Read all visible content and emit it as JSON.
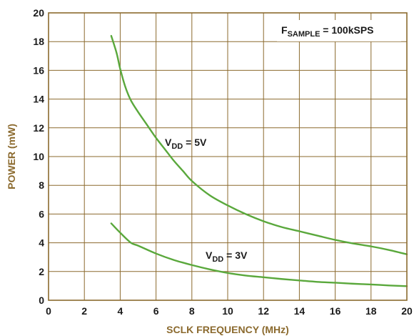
{
  "chart_data": {
    "type": "line",
    "xlabel": "SCLK FREQUENCY (MHz)",
    "ylabel": "POWER (mW)",
    "xlim": [
      0,
      20
    ],
    "ylim": [
      0,
      20
    ],
    "x_ticks": [
      0,
      2,
      4,
      6,
      8,
      10,
      12,
      14,
      16,
      18,
      20
    ],
    "y_ticks": [
      0,
      2,
      4,
      6,
      8,
      10,
      12,
      14,
      16,
      18,
      20
    ],
    "grid": true,
    "colors": {
      "grid": "#8b6a2e",
      "frame": "#8b6a2e",
      "series": "#5aa83c",
      "axis_title": "#8b6a2e"
    },
    "series": [
      {
        "name": "VDD = 5V",
        "x": [
          3.5,
          3.8,
          4.0,
          4.3,
          4.6,
          5.0,
          5.5,
          6.0,
          6.5,
          7.0,
          7.5,
          8.0,
          9.0,
          10.0,
          11.0,
          12.0,
          13.0,
          14.0,
          15.0,
          16.0,
          17.0,
          18.0,
          19.0,
          20.0
        ],
        "values": [
          18.4,
          17.2,
          16.1,
          14.8,
          13.9,
          13.1,
          12.2,
          11.3,
          10.5,
          9.7,
          9.0,
          8.3,
          7.3,
          6.6,
          6.0,
          5.5,
          5.1,
          4.8,
          4.5,
          4.2,
          3.95,
          3.75,
          3.5,
          3.2
        ]
      },
      {
        "name": "VDD = 3V",
        "x": [
          3.5,
          4.0,
          4.6,
          5.0,
          6.0,
          7.0,
          8.0,
          9.0,
          10.0,
          11.0,
          12.0,
          13.0,
          14.0,
          15.0,
          16.0,
          17.0,
          18.0,
          19.0,
          20.0
        ],
        "values": [
          5.35,
          4.7,
          4.0,
          3.8,
          3.25,
          2.8,
          2.45,
          2.15,
          1.9,
          1.72,
          1.6,
          1.48,
          1.38,
          1.28,
          1.22,
          1.15,
          1.1,
          1.03,
          0.98
        ]
      }
    ],
    "annotations": [
      {
        "prefix": "V",
        "sub": "DD",
        "suffix": " = 5V"
      },
      {
        "prefix": "V",
        "sub": "DD",
        "suffix": " = 3V"
      },
      {
        "prefix": "F",
        "sub": "SAMPLE",
        "suffix": " = 100kSPS"
      }
    ]
  }
}
